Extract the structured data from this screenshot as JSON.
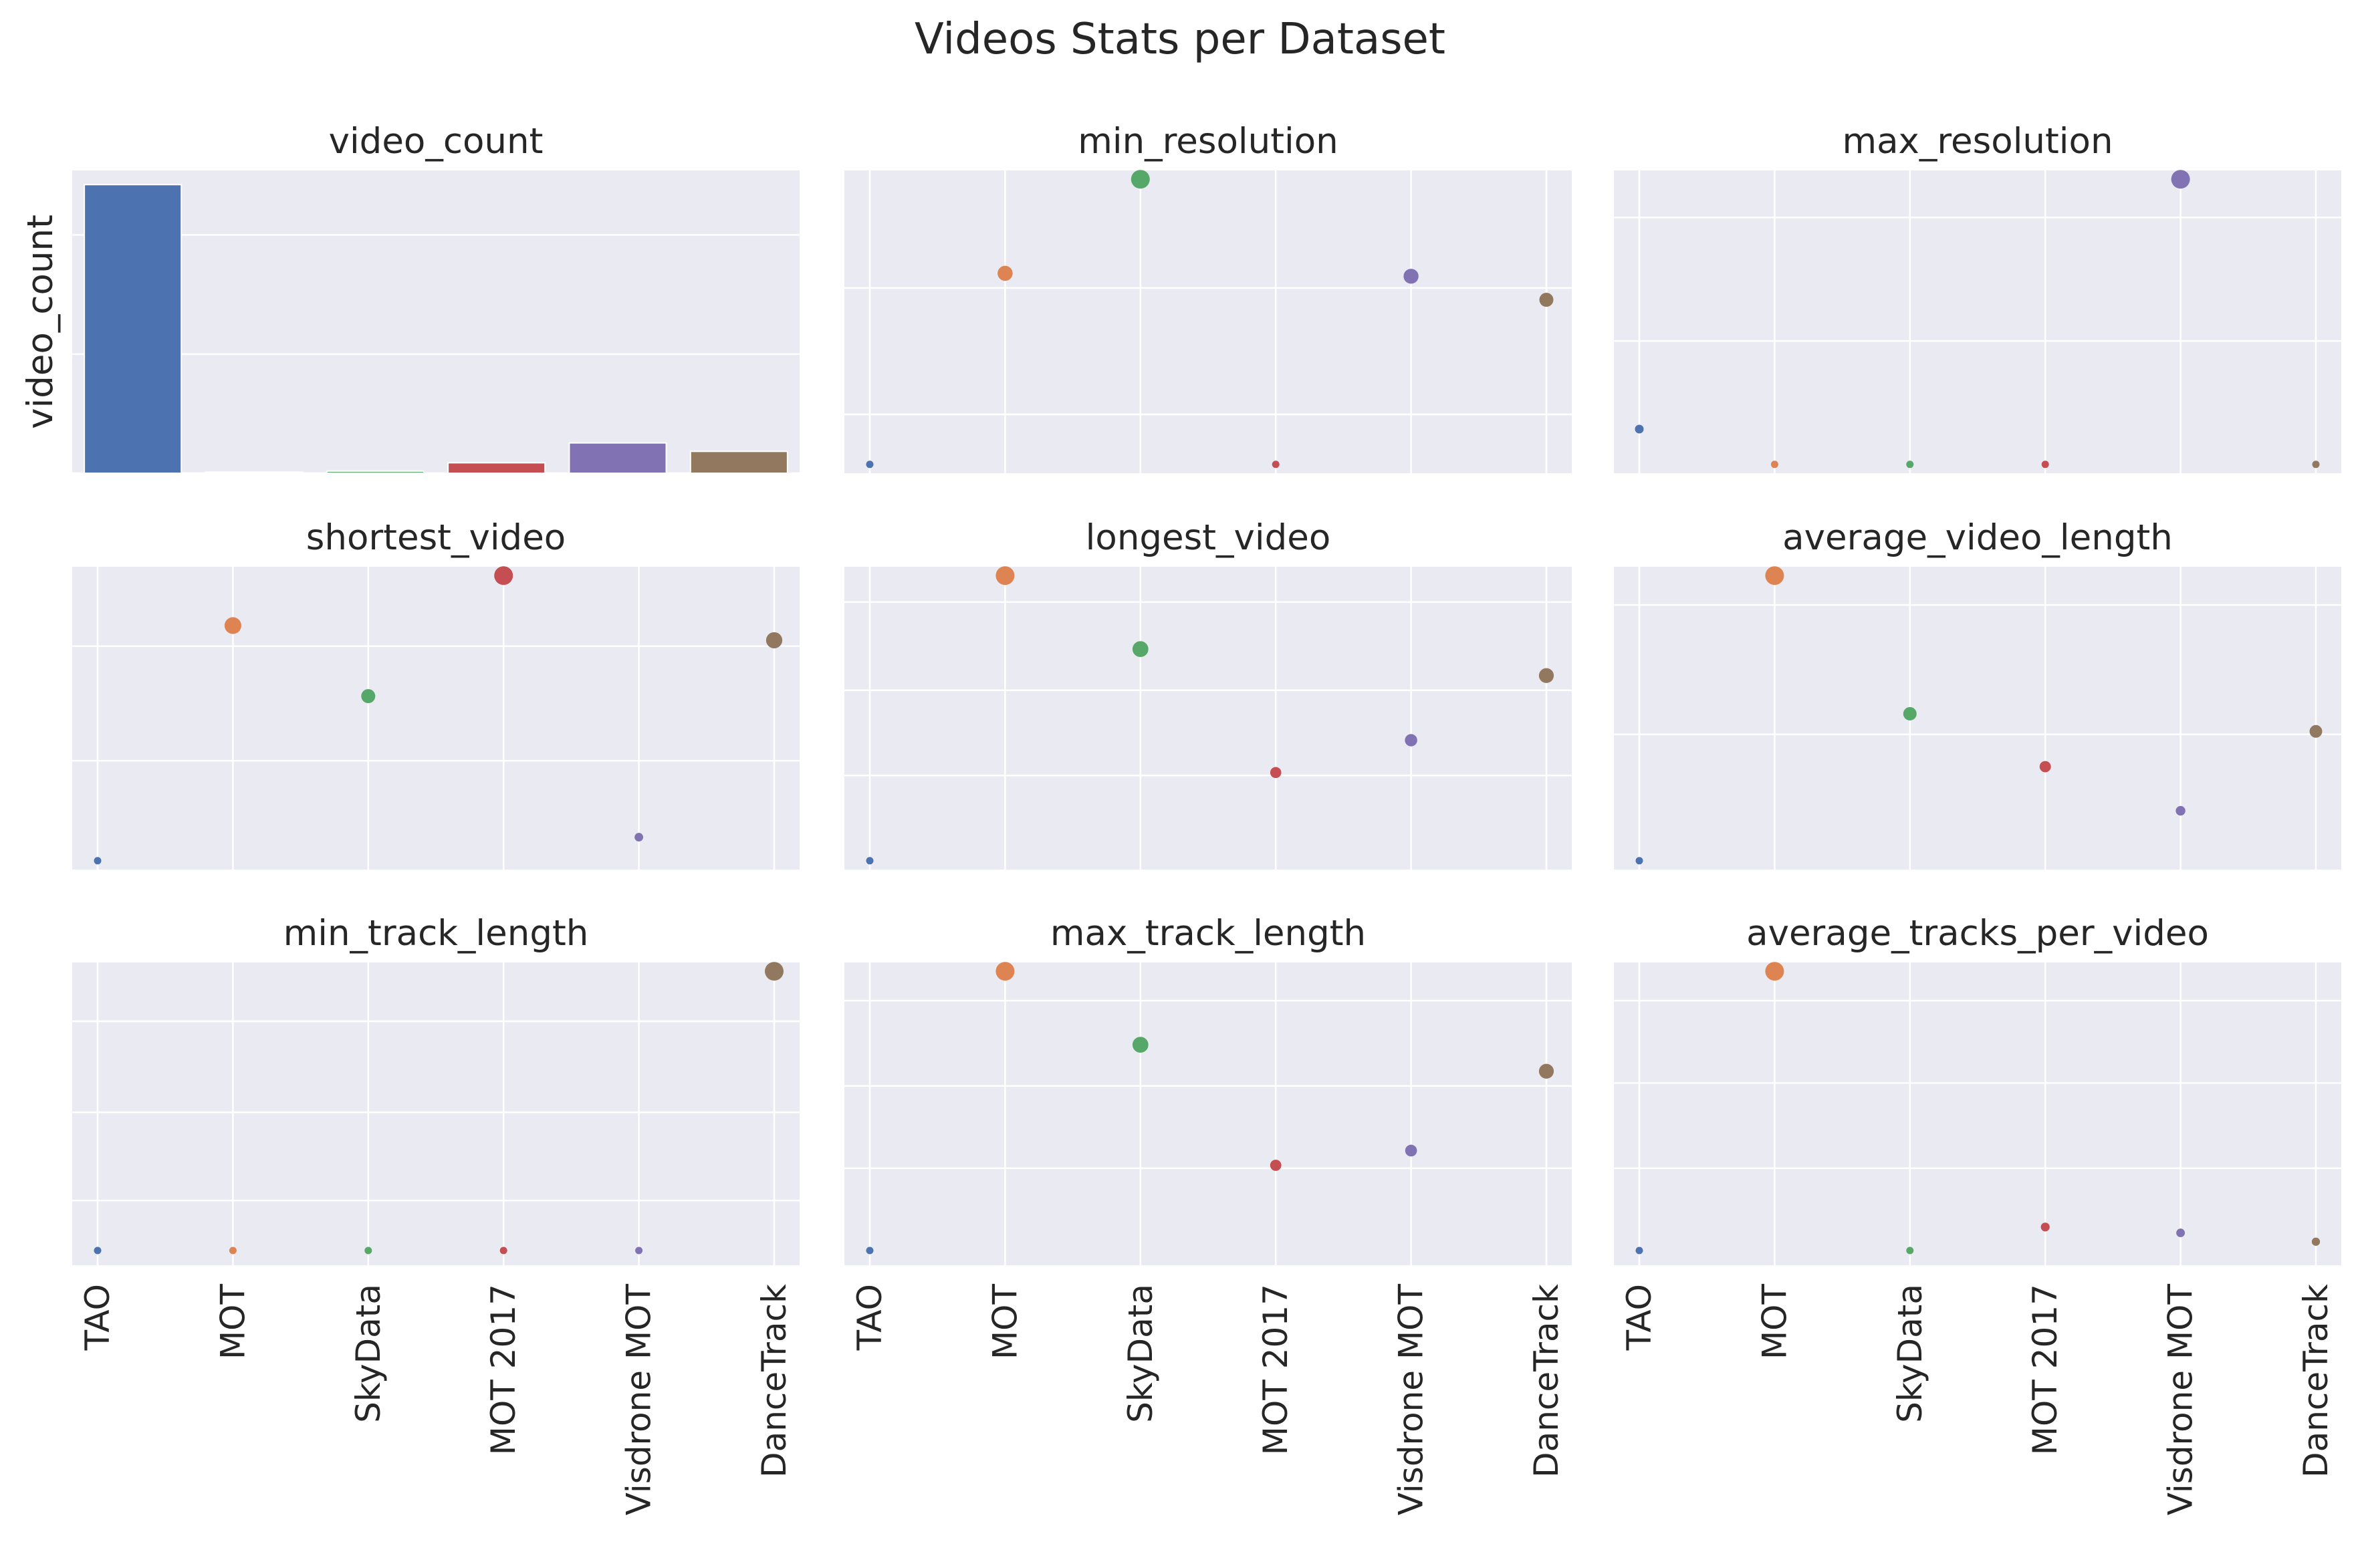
{
  "chart_data": {
    "type": "scatter",
    "title": "Videos Stats per Dataset",
    "categories": [
      "TAO",
      "MOT",
      "SkyData",
      "MOT 2017",
      "Visdrone MOT",
      "DanceTrack"
    ],
    "palette": [
      "#4c72b0",
      "#dd8452",
      "#55a868",
      "#c44e52",
      "#8172b3",
      "#937860"
    ],
    "grid": true,
    "panels": [
      {
        "title": "video_count",
        "type": "bar",
        "ylabel": "video_count",
        "values": [
          2907,
          11,
          21,
          105,
          305,
          220
        ],
        "ylim": [
          0,
          3050
        ],
        "yticks": [
          0,
          1200,
          2400
        ]
      },
      {
        "title": "min_resolution",
        "type": "scatter",
        "values": [
          0.03,
          0.68,
          1.0,
          0.03,
          0.67,
          0.59
        ],
        "sizes": [
          0.0,
          0.68,
          1.0,
          0.0,
          0.67,
          0.59
        ],
        "ylim": [
          0,
          1.03
        ],
        "yticks": [
          0.2,
          0.63
        ]
      },
      {
        "title": "max_resolution",
        "type": "scatter",
        "values": [
          0.15,
          0.03,
          0.03,
          0.03,
          1.0,
          0.03
        ],
        "sizes": [
          0.12,
          0.0,
          0.0,
          0.0,
          1.0,
          0.0
        ],
        "ylim": [
          0,
          1.03
        ],
        "yticks": [
          0.45,
          0.87
        ]
      },
      {
        "title": "shortest_video",
        "type": "scatter",
        "values": [
          0.03,
          0.83,
          0.59,
          1.0,
          0.11,
          0.78
        ],
        "sizes": [
          0.0,
          0.83,
          0.59,
          1.0,
          0.11,
          0.78
        ],
        "ylim": [
          0,
          1.03
        ],
        "yticks": [
          0.37,
          0.76
        ]
      },
      {
        "title": "longest_video",
        "type": "scatter",
        "values": [
          0.03,
          1.0,
          0.75,
          0.33,
          0.44,
          0.66
        ],
        "sizes": [
          0.0,
          1.0,
          0.75,
          0.33,
          0.44,
          0.66
        ],
        "ylim": [
          0,
          1.03
        ],
        "yticks": [
          0.32,
          0.61,
          0.91
        ]
      },
      {
        "title": "average_video_length",
        "type": "scatter",
        "values": [
          0.03,
          1.0,
          0.53,
          0.35,
          0.2,
          0.47
        ],
        "sizes": [
          0.0,
          1.0,
          0.53,
          0.35,
          0.2,
          0.47
        ],
        "ylim": [
          0,
          1.03
        ],
        "yticks": [
          0.46,
          0.9
        ]
      },
      {
        "title": "min_track_length",
        "type": "scatter",
        "values": [
          0.05,
          0.05,
          0.05,
          0.05,
          0.05,
          1.0
        ],
        "sizes": [
          0.0,
          0.0,
          0.0,
          0.0,
          0.0,
          1.0
        ],
        "ylim": [
          0,
          1.03
        ],
        "yticks": [
          0.22,
          0.52,
          0.83
        ]
      },
      {
        "title": "max_track_length",
        "type": "scatter",
        "values": [
          0.05,
          1.0,
          0.75,
          0.34,
          0.39,
          0.66
        ],
        "sizes": [
          0.0,
          1.0,
          0.75,
          0.34,
          0.39,
          0.66
        ],
        "ylim": [
          0,
          1.03
        ],
        "yticks": [
          0.33,
          0.61,
          0.9
        ]
      },
      {
        "title": "average_tracks_per_video",
        "type": "scatter",
        "values": [
          0.05,
          1.0,
          0.05,
          0.13,
          0.11,
          0.08
        ],
        "sizes": [
          0.0,
          1.0,
          0.0,
          0.13,
          0.11,
          0.08
        ],
        "ylim": [
          0,
          1.03
        ],
        "yticks": [
          0.33,
          0.62,
          0.9
        ]
      }
    ]
  }
}
